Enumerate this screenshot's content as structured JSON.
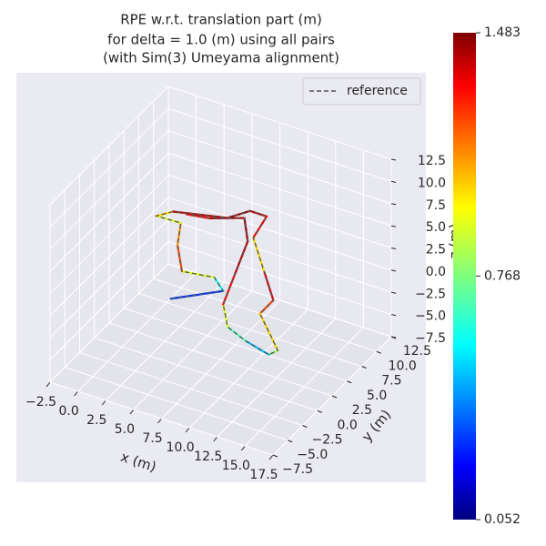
{
  "chart_data": {
    "type": "line3d",
    "title": [
      "RPE w.r.t. translation part (m)",
      "for delta = 1.0 (m) using all pairs",
      "(with Sim(3) Umeyama alignment)"
    ],
    "xlabel": "x (m)",
    "ylabel": "y (m)",
    "zlabel": "z (m)",
    "xlim": [
      -2.5,
      17.5
    ],
    "ylim": [
      -7.5,
      12.5
    ],
    "zlim": [
      -7.5,
      12.5
    ],
    "xticks": [
      {
        "value": -2.5,
        "label": "−2.5"
      },
      {
        "value": 0,
        "label": "0.0"
      },
      2.5,
      {
        "value": 5,
        "label": "5.0"
      },
      7.5,
      {
        "value": 10,
        "label": "10.0"
      },
      12.5,
      {
        "value": 15,
        "label": "15.0"
      },
      17.5
    ],
    "yticks": [
      {
        "value": -7.5,
        "label": "−7.5"
      },
      {
        "value": -5,
        "label": "−5.0"
      },
      {
        "value": -2.5,
        "label": "−2.5"
      },
      {
        "value": 0,
        "label": "0.0"
      },
      2.5,
      {
        "value": 5,
        "label": "5.0"
      },
      7.5,
      {
        "value": 10,
        "label": "10.0"
      },
      12.5
    ],
    "zticks": [
      {
        "value": -7.5,
        "label": "−7.5"
      },
      {
        "value": -5,
        "label": "−5.0"
      },
      {
        "value": -2.5,
        "label": "−2.5"
      },
      {
        "value": 0,
        "label": "0.0"
      },
      2.5,
      {
        "value": 5,
        "label": "5.0"
      },
      7.5,
      {
        "value": 10,
        "label": "10.0"
      },
      12.5
    ],
    "legend": "upper right",
    "series": [
      {
        "name": "reference",
        "color": "#555555",
        "x": [
          1.7,
          6.4,
          5.6,
          2.7,
          2.3,
          2.6,
          0.4,
          1.9,
          6.8,
          8.8,
          10.3,
          9.1,
          10.1,
          10.9,
          9.7,
          11.3,
          10.5,
          8.4,
          6.8,
          6.4,
          7.5,
          8.6,
          8.3,
          5.2,
          3.1
        ],
        "y": [
          5,
          5,
          5,
          5,
          5,
          5,
          5,
          5,
          5,
          5,
          5,
          5,
          5,
          5,
          5,
          5,
          5,
          5,
          5,
          5,
          5,
          5,
          5,
          5,
          5
        ],
        "z": [
          -4.7,
          -1.9,
          -0.7,
          -1.2,
          1.6,
          4.2,
          4.1,
          5.2,
          6.5,
          8.1,
          8.1,
          5.2,
          1.7,
          -1.1,
          -3.1,
          -6.6,
          -7.4,
          -6.7,
          -5.8,
          -3.4,
          0.6,
          4.6,
          7.1,
          5.8,
          5.4
        ],
        "error": [
          0.3,
          0.6,
          0.9,
          1.2,
          1.1,
          0.9,
          1.0,
          1.4,
          1.45,
          1.4,
          1.3,
          1.0,
          1.35,
          1.2,
          1.0,
          0.8,
          0.5,
          0.7,
          0.9,
          1.3,
          1.4,
          1.45,
          1.4,
          1.3,
          1.2
        ]
      }
    ],
    "colorbar": {
      "cmap": "jet",
      "lim": [
        0.052,
        1.483
      ],
      "ticks": [
        0.052,
        0.768,
        1.483
      ]
    }
  }
}
